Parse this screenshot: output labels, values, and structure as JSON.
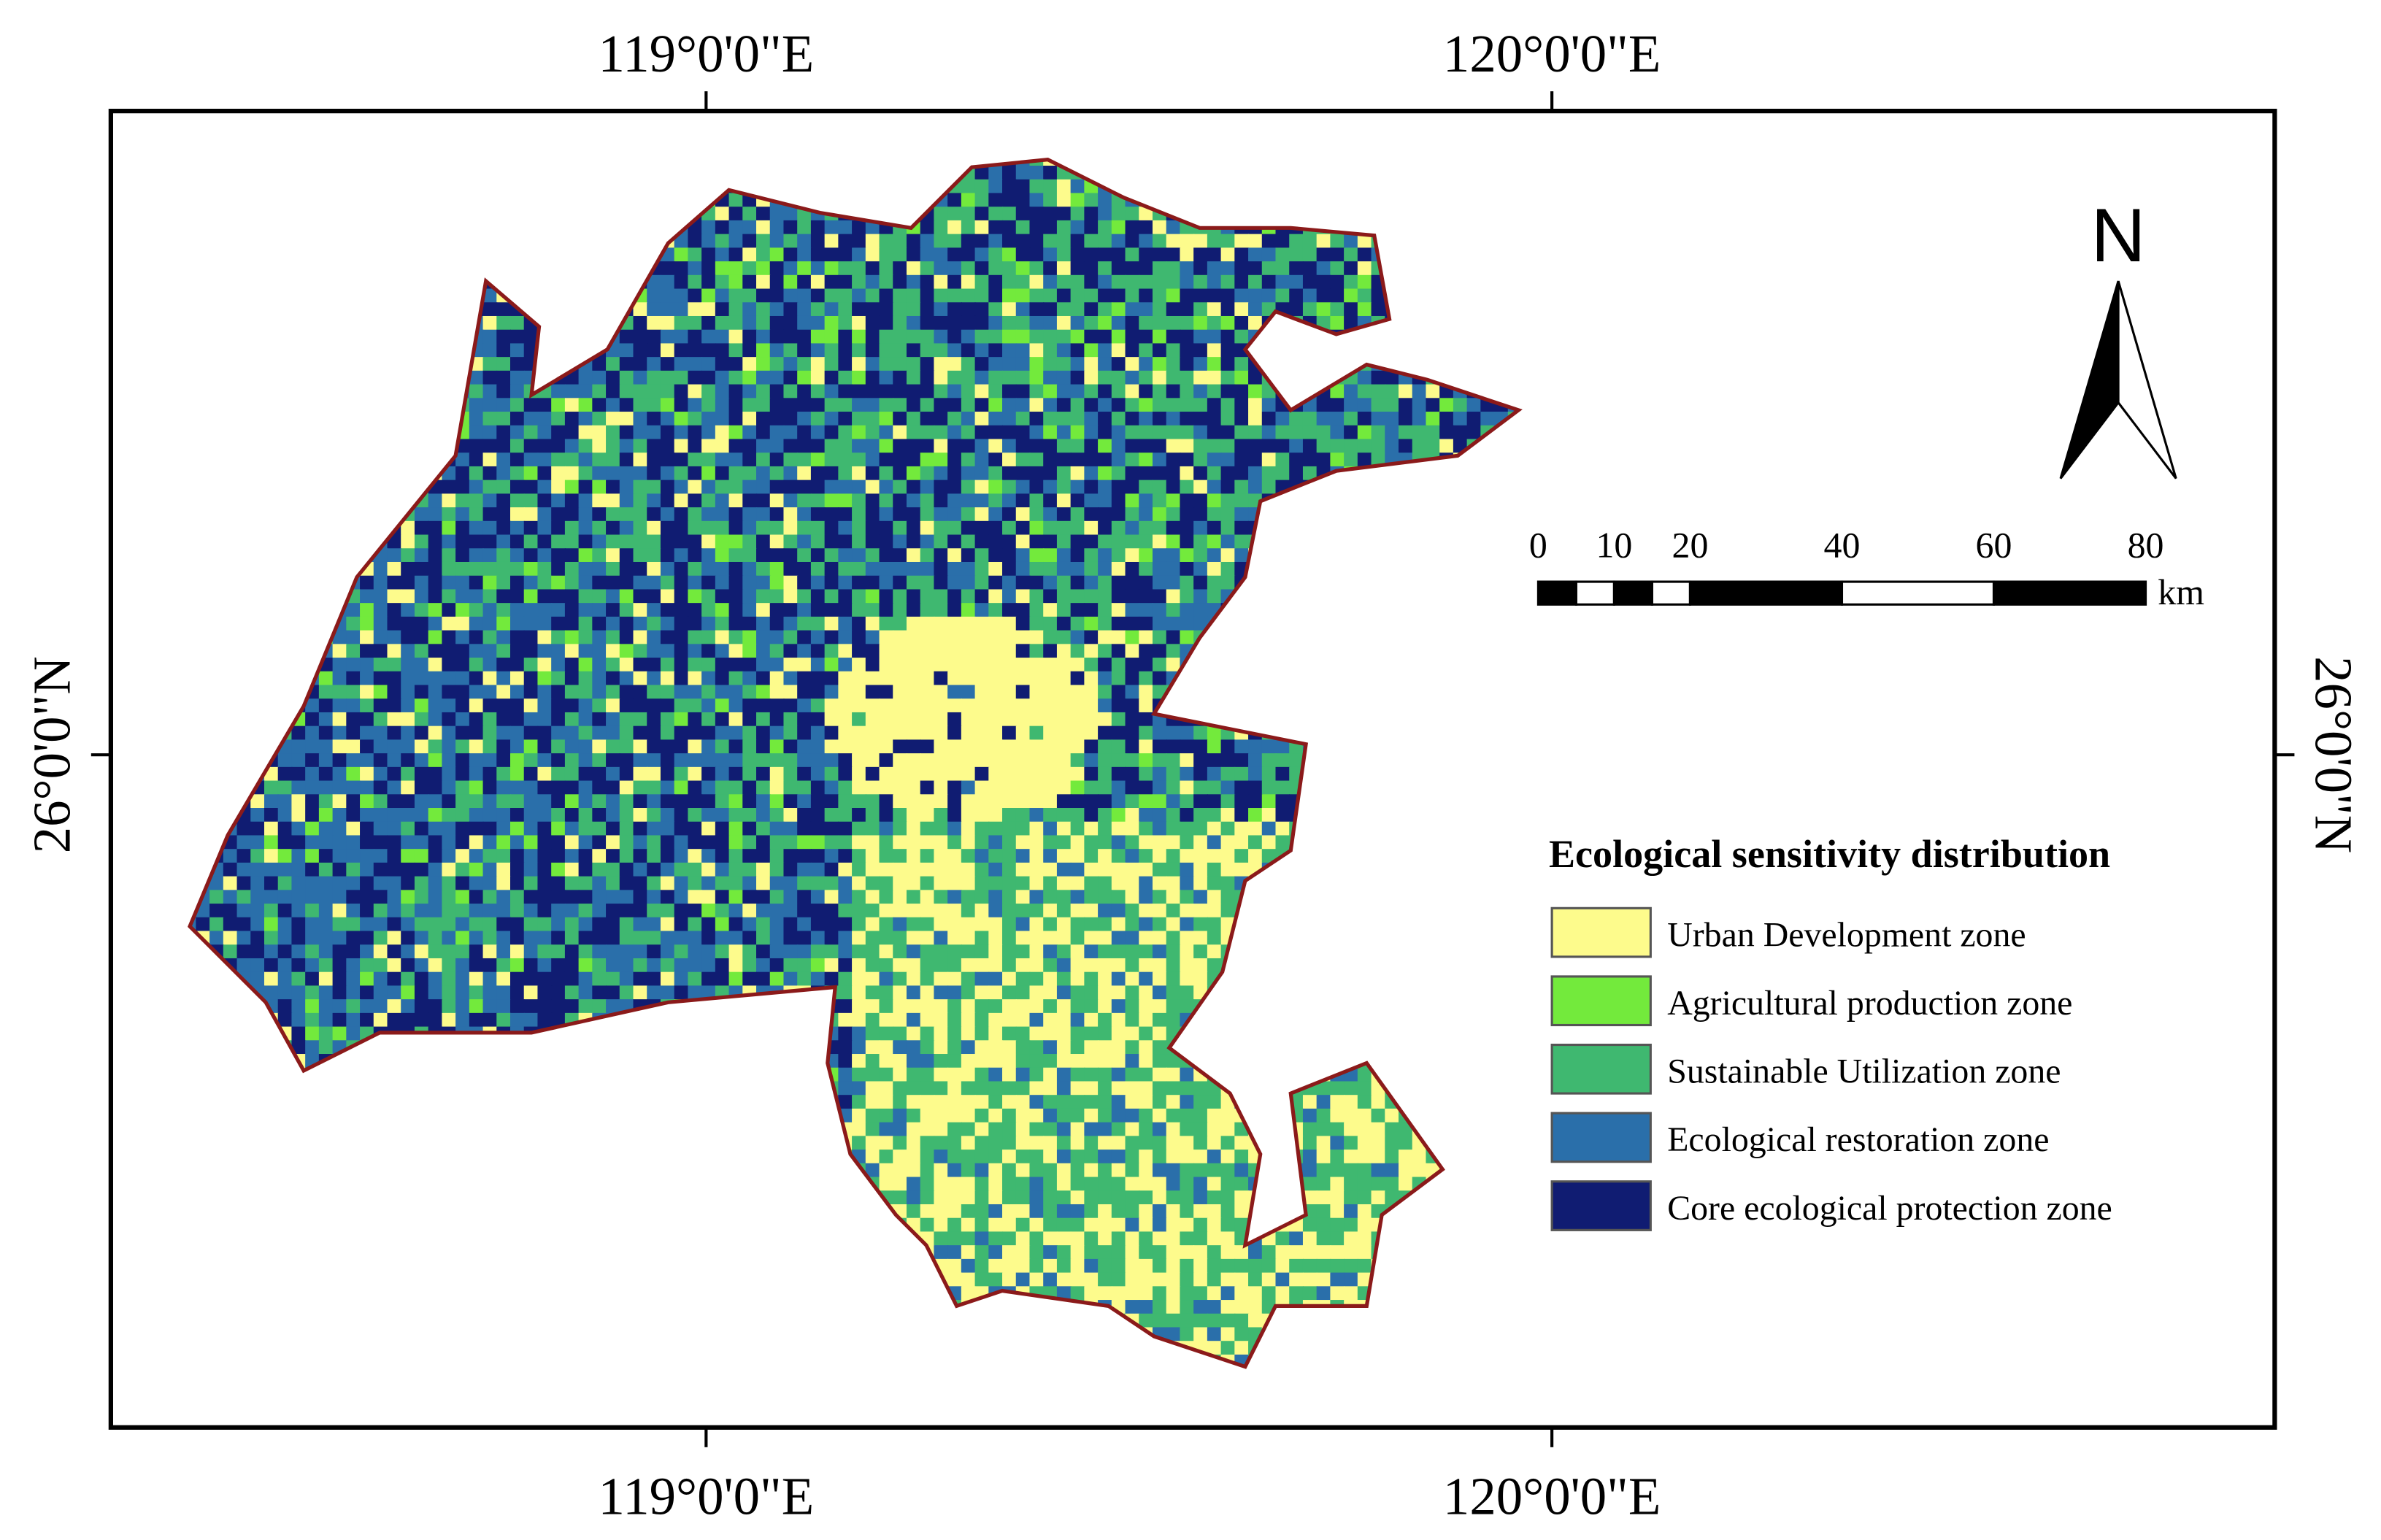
{
  "map": {
    "graticule": {
      "top": [
        "119°0'0\"E",
        "120°0'0\"E"
      ],
      "bottom": [
        "119°0'0\"E",
        "120°0'0\"E"
      ],
      "left": "26°0'0\"N",
      "right": "26°0'0\"N"
    },
    "north": "N",
    "scale_bar": {
      "labels": [
        0,
        10,
        20,
        40,
        60,
        80
      ],
      "unit": "km"
    },
    "legend": {
      "title": "Ecological sensitivity distribution",
      "items": [
        {
          "label": "Urban Development zone",
          "color": "#fdfb8c"
        },
        {
          "label": "Agricultural production zone",
          "color": "#73ea3c"
        },
        {
          "label": "Sustainable Utilization zone",
          "color": "#3fb870"
        },
        {
          "label": "Ecological restoration zone",
          "color": "#2a6faa"
        },
        {
          "label": "Core ecological protection zone",
          "color": "#101c72"
        }
      ]
    }
  }
}
